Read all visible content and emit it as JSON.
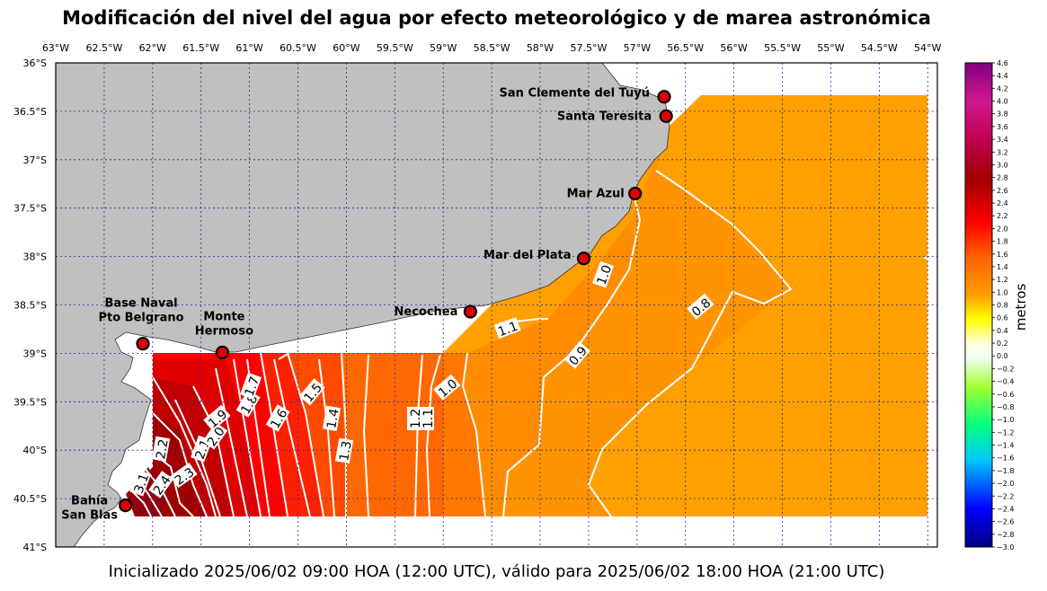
{
  "title": "Modificación del nivel del agua por efecto meteorológico y de marea astronómica",
  "subtitle": "Inicializado 2025/06/02 09:00 HOA (12:00 UTC), válido para 2025/06/02 18:00 HOA (21:00 UTC)",
  "colorbar": {
    "label": "metros",
    "min": -3.0,
    "max": 4.6,
    "ticks": [
      "4.6",
      "4.4",
      "4.2",
      "4.0",
      "3.8",
      "3.6",
      "3.4",
      "3.2",
      "3.0",
      "2.8",
      "2.6",
      "2.4",
      "2.2",
      "2.0",
      "1.8",
      "1.6",
      "1.4",
      "1.2",
      "1.0",
      "0.8",
      "0.6",
      "0.4",
      "0.2",
      "0.0",
      "−0.2",
      "−0.4",
      "−0.6",
      "−0.8",
      "−1.0",
      "−1.2",
      "−1.4",
      "−1.6",
      "−1.8",
      "−2.0",
      "−2.2",
      "−2.4",
      "−2.6",
      "−2.8",
      "−3.0"
    ]
  },
  "map": {
    "lon_range": [
      -63.0,
      -53.9
    ],
    "lat_range": [
      -41.0,
      -36.0
    ],
    "lon_ticks": [
      "63°W",
      "62.5°W",
      "62°W",
      "61.5°W",
      "61°W",
      "60.5°W",
      "60°W",
      "59.5°W",
      "59°W",
      "58.5°W",
      "58°W",
      "57.5°W",
      "57°W",
      "56.5°W",
      "56°W",
      "55.5°W",
      "55°W",
      "54.5°W",
      "54°W"
    ],
    "lat_ticks": [
      "36°S",
      "36.5°S",
      "37°S",
      "37.5°S",
      "38°S",
      "38.5°S",
      "39°S",
      "39.5°S",
      "40°S",
      "40.5°S",
      "41°S"
    ],
    "land_color": "#c0c0c0",
    "grid_color": "#2a2a9a"
  },
  "stations": [
    {
      "name": "San Clemente del Tuyú",
      "lon": -56.72,
      "lat": -36.35
    },
    {
      "name": "Santa Teresita",
      "lon": -56.7,
      "lat": -36.55
    },
    {
      "name": "Mar Azul",
      "lon": -57.02,
      "lat": -37.35
    },
    {
      "name": "Mar del Plata",
      "lon": -57.55,
      "lat": -38.02
    },
    {
      "name": "Necochea",
      "lon": -58.72,
      "lat": -38.57
    },
    {
      "name": "Base Naval\nPto Belgrano",
      "lon": -62.1,
      "lat": -38.9
    },
    {
      "name": "Monte\nHermoso",
      "lon": -61.28,
      "lat": -38.99
    },
    {
      "name": "Bahía\nSan Blas",
      "lon": -62.28,
      "lat": -40.57
    }
  ],
  "contour_labels": [
    "3.1",
    "2.4",
    "2.3",
    "2.2",
    "2.1",
    "2.0",
    "1.9",
    "1.8",
    "1.7",
    "1.6",
    "1.5",
    "1.4",
    "1.3",
    "1.2",
    "1.1",
    "1.1",
    "1.0",
    "1.0",
    "0.9",
    "0.8"
  ]
}
